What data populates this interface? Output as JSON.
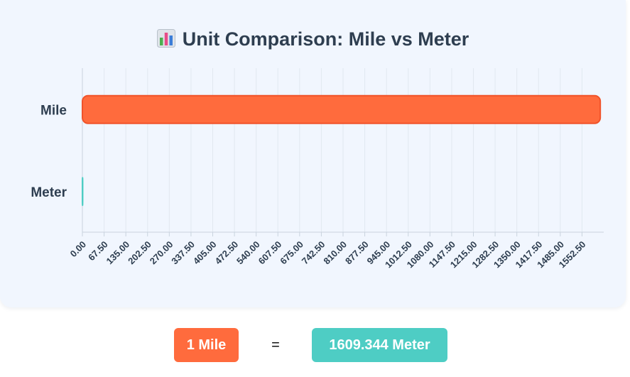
{
  "title": "Unit Comparison: Mile vs Meter",
  "title_icon": "bar-chart-icon",
  "chart_data": {
    "type": "bar",
    "orientation": "horizontal",
    "categories": [
      "Mile",
      "Meter"
    ],
    "values": [
      1609.344,
      1
    ],
    "xlim": [
      0,
      1620
    ],
    "xticks": [
      "0.00",
      "67.50",
      "135.00",
      "202.50",
      "270.00",
      "337.50",
      "405.00",
      "472.50",
      "540.00",
      "607.50",
      "675.00",
      "742.50",
      "810.00",
      "877.50",
      "945.00",
      "1012.50",
      "1080.00",
      "1147.50",
      "1215.00",
      "1282.50",
      "1350.00",
      "1417.50",
      "1485.00",
      "1552.50"
    ],
    "tick_step": 67.5,
    "grid": true,
    "colors": {
      "Mile": "#ff6b3d",
      "Mile_border": "#f0532a",
      "Meter": "#4ecdc4"
    },
    "grid_color": "#e1e8f0",
    "axis_color": "#c9d3de",
    "label_color": "#2e3e50"
  },
  "result": {
    "left_label": "1 Mile",
    "equals": "=",
    "right_label": "1609.344 Meter",
    "left_color": "#ff6b3d",
    "right_color": "#4ecdc4"
  }
}
